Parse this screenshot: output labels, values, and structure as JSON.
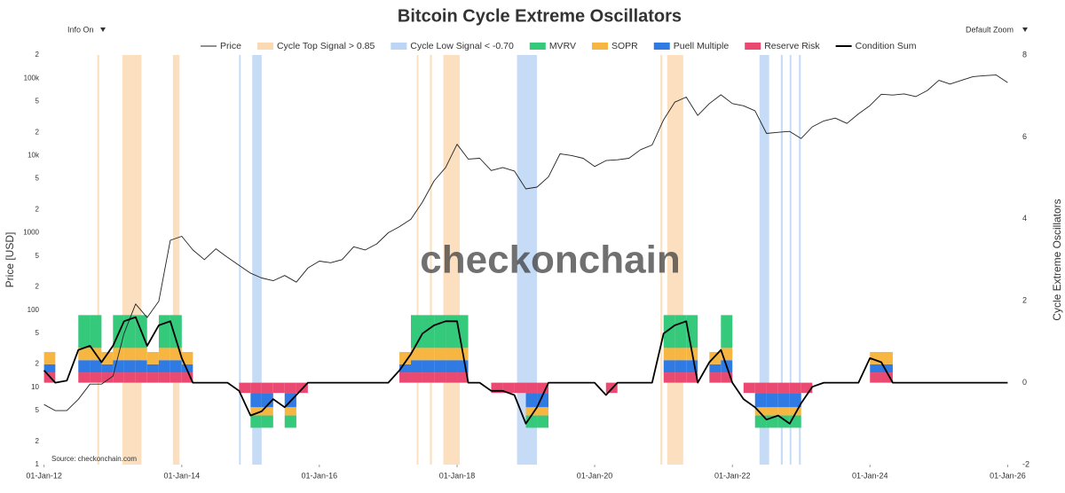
{
  "controls": [
    "Info On",
    "Default Zoom"
  ],
  "chart_data": {
    "type": "line",
    "title": "Bitcoin Cycle Extreme Oscillators",
    "watermark": "checkonchain",
    "source": "Source: checkonchain.com",
    "ylabel": "Price [USD]",
    "y2label": "Cycle Extreme Oscillators",
    "log_scale": true,
    "grid": false,
    "xlim": [
      "2011-12-15",
      "2026-02-15"
    ],
    "xticks": [
      {
        "value": "2012-01-01",
        "label": "01-Jan-12"
      },
      {
        "value": "2014-01-01",
        "label": "01-Jan-14"
      },
      {
        "value": "2016-01-01",
        "label": "01-Jan-16"
      },
      {
        "value": "2018-01-01",
        "label": "01-Jan-18"
      },
      {
        "value": "2020-01-01",
        "label": "01-Jan-20"
      },
      {
        "value": "2022-01-01",
        "label": "01-Jan-22"
      },
      {
        "value": "2024-01-01",
        "label": "01-Jan-24"
      },
      {
        "value": "2026-01-01",
        "label": "01-Jan-26"
      }
    ],
    "ylim": [
      1,
      200000
    ],
    "yticks": [
      1,
      2,
      5,
      10,
      {
        "value": 20,
        "label": "2"
      },
      {
        "value": 50,
        "label": "5"
      },
      100,
      {
        "value": 200,
        "label": "2"
      },
      {
        "value": 500,
        "label": "5"
      },
      1000,
      {
        "value": 2000,
        "label": "2"
      },
      {
        "value": 5000,
        "label": "5"
      },
      {
        "value": 10000,
        "label": "10k"
      },
      {
        "value": 20000,
        "label": "2"
      },
      {
        "value": 50000,
        "label": "5"
      },
      {
        "value": 100000,
        "label": "100k"
      },
      {
        "value": 200000,
        "label": "2"
      }
    ],
    "y2lim": [
      -2,
      8
    ],
    "y2ticks": [
      -2,
      0,
      2,
      4,
      6,
      8
    ],
    "top_signal": {
      "name": "Cycle Top Signal > 0.85",
      "color": "#fbd9b3",
      "periods": [
        [
          "2012-10-10",
          "2012-10-20"
        ],
        [
          "2013-02-20",
          "2013-06-01"
        ],
        [
          "2013-11-15",
          "2013-12-20"
        ],
        [
          "2017-06-01",
          "2017-06-10"
        ],
        [
          "2017-08-10",
          "2017-08-20"
        ],
        [
          "2017-10-20",
          "2018-01-15"
        ],
        [
          "2020-12-15",
          "2020-12-25"
        ],
        [
          "2021-01-20",
          "2021-04-15"
        ]
      ]
    },
    "low_signal": {
      "name": "Cycle Low Signal < -0.70",
      "color": "#bcd5f5",
      "periods": [
        [
          "2014-11-01",
          "2014-11-10"
        ],
        [
          "2015-01-10",
          "2015-03-01"
        ],
        [
          "2018-11-15",
          "2019-03-01"
        ],
        [
          "2022-05-25",
          "2022-07-15"
        ],
        [
          "2022-09-15",
          "2022-09-25"
        ],
        [
          "2022-11-01",
          "2022-11-10"
        ],
        [
          "2022-12-20",
          "2022-12-30"
        ]
      ]
    },
    "x": [
      "2012-01-01",
      "2012-03-01",
      "2012-05-01",
      "2012-07-01",
      "2012-09-01",
      "2012-11-01",
      "2013-01-01",
      "2013-03-01",
      "2013-05-01",
      "2013-07-01",
      "2013-09-01",
      "2013-11-01",
      "2014-01-01",
      "2014-03-01",
      "2014-05-01",
      "2014-07-01",
      "2014-09-01",
      "2014-11-01",
      "2015-01-01",
      "2015-03-01",
      "2015-05-01",
      "2015-07-01",
      "2015-09-01",
      "2015-11-01",
      "2016-01-01",
      "2016-03-01",
      "2016-05-01",
      "2016-07-01",
      "2016-09-01",
      "2016-11-01",
      "2017-01-01",
      "2017-03-01",
      "2017-05-01",
      "2017-07-01",
      "2017-09-01",
      "2017-11-01",
      "2018-01-01",
      "2018-03-01",
      "2018-05-01",
      "2018-07-01",
      "2018-09-01",
      "2018-11-01",
      "2019-01-01",
      "2019-03-01",
      "2019-05-01",
      "2019-07-01",
      "2019-09-01",
      "2019-11-01",
      "2020-01-01",
      "2020-03-01",
      "2020-05-01",
      "2020-07-01",
      "2020-09-01",
      "2020-11-01",
      "2021-01-01",
      "2021-03-01",
      "2021-05-01",
      "2021-07-01",
      "2021-09-01",
      "2021-11-01",
      "2022-01-01",
      "2022-03-01",
      "2022-05-01",
      "2022-07-01",
      "2022-09-01",
      "2022-11-01",
      "2023-01-01",
      "2023-03-01",
      "2023-05-01",
      "2023-07-01",
      "2023-09-01",
      "2023-11-01",
      "2024-01-01",
      "2024-03-01",
      "2024-05-01",
      "2024-07-01",
      "2024-09-01",
      "2024-11-01",
      "2025-01-01",
      "2025-03-01",
      "2025-05-01",
      "2025-07-01",
      "2025-09-01",
      "2025-11-01",
      "2026-01-01"
    ],
    "series": [
      {
        "name": "Price",
        "color": "#222222",
        "axis": "y",
        "values": [
          6,
          5,
          5,
          7,
          11,
          11,
          14,
          50,
          120,
          80,
          130,
          800,
          900,
          600,
          450,
          620,
          480,
          380,
          300,
          260,
          240,
          280,
          230,
          350,
          430,
          410,
          450,
          660,
          600,
          720,
          1000,
          1200,
          1500,
          2500,
          4700,
          7000,
          14000,
          9000,
          9200,
          6400,
          7000,
          6300,
          3700,
          3900,
          5300,
          10500,
          10000,
          9200,
          7200,
          8600,
          8800,
          9200,
          11900,
          13700,
          29000,
          49000,
          57000,
          33000,
          47000,
          61000,
          47000,
          44000,
          38000,
          19300,
          20000,
          20500,
          16600,
          23500,
          28000,
          30500,
          26000,
          34600,
          44200,
          62000,
          60600,
          62700,
          58000,
          69500,
          94000,
          84000,
          94000,
          105000,
          108000,
          110000,
          88000
        ]
      },
      {
        "name": "MVRV",
        "color": "#35c97c",
        "axis": "y2",
        "stacked": true,
        "values": [
          0,
          0,
          0,
          0.8,
          0.8,
          0,
          0.8,
          0.8,
          0.8,
          0,
          0.8,
          0.8,
          0,
          0,
          0,
          0,
          0,
          0,
          -0.3,
          -0.3,
          0,
          -0.3,
          0,
          0,
          0,
          0,
          0,
          0,
          0,
          0,
          0,
          0,
          0.8,
          0.8,
          0.8,
          0.8,
          0.8,
          0,
          0,
          0,
          0,
          0,
          -0.3,
          -0.3,
          0,
          0,
          0,
          0,
          0,
          0,
          0,
          0,
          0,
          0,
          0.8,
          0.8,
          0.8,
          0,
          0,
          0.8,
          0,
          0,
          -0.3,
          -0.3,
          -0.3,
          -0.3,
          0,
          0,
          0,
          0,
          0,
          0,
          0,
          0,
          0,
          0,
          0,
          0,
          0,
          0,
          0,
          0,
          0,
          0,
          0
        ]
      },
      {
        "name": "SOPR",
        "color": "#f7b541",
        "axis": "y2",
        "stacked": true,
        "values": [
          0.3,
          0,
          0,
          0.3,
          0.3,
          0.3,
          0.3,
          0.3,
          0.3,
          0.3,
          0.3,
          0.3,
          0.3,
          0,
          0,
          0,
          0,
          0,
          -0.2,
          -0.2,
          0,
          -0.2,
          0,
          0,
          0,
          0,
          0,
          0,
          0,
          0,
          0,
          0.3,
          0.3,
          0.3,
          0.3,
          0.3,
          0.3,
          0,
          0,
          0,
          0,
          0,
          -0.2,
          -0.2,
          0,
          0,
          0,
          0,
          0,
          0,
          0,
          0,
          0,
          0,
          0.3,
          0.3,
          0.3,
          0,
          0.3,
          0.3,
          0,
          0,
          -0.2,
          -0.2,
          -0.2,
          -0.2,
          0,
          0,
          0,
          0,
          0,
          0,
          0.3,
          0.3,
          0,
          0,
          0,
          0,
          0,
          0,
          0,
          0,
          0,
          0,
          0
        ]
      },
      {
        "name": "Puell Multiple",
        "color": "#2f7be3",
        "axis": "y2",
        "stacked": true,
        "values": [
          0.2,
          0,
          0,
          0.3,
          0.3,
          0.2,
          0.3,
          0.3,
          0.3,
          0.2,
          0.3,
          0.3,
          0.2,
          0,
          0,
          0,
          0,
          0,
          -0.35,
          -0.35,
          0,
          -0.35,
          0,
          0,
          0,
          0,
          0,
          0,
          0,
          0,
          0,
          0.2,
          0.3,
          0.3,
          0.3,
          0.3,
          0.3,
          0,
          0,
          0,
          0,
          0,
          -0.35,
          -0.35,
          0,
          0,
          0,
          0,
          0,
          0,
          0,
          0,
          0,
          0,
          0.3,
          0.3,
          0.3,
          0,
          0.2,
          0.3,
          0,
          0,
          -0.35,
          -0.35,
          -0.35,
          -0.35,
          0,
          0,
          0,
          0,
          0,
          0,
          0.2,
          0.2,
          0,
          0,
          0,
          0,
          0,
          0,
          0,
          0,
          0,
          0,
          0
        ]
      },
      {
        "name": "Reserve Risk",
        "color": "#ea4a72",
        "axis": "y2",
        "stacked": true,
        "values": [
          0.25,
          0,
          0,
          0.25,
          0.25,
          0.25,
          0.25,
          0.25,
          0.25,
          0.25,
          0.25,
          0.25,
          0.25,
          0,
          0,
          0,
          0,
          -0.25,
          -0.25,
          -0.25,
          -0.25,
          -0.25,
          -0.25,
          0,
          0,
          0,
          0,
          0,
          0,
          0,
          0,
          0.25,
          0.25,
          0.25,
          0.25,
          0.25,
          0.25,
          0,
          0,
          -0.25,
          -0.25,
          -0.25,
          -0.25,
          -0.25,
          0,
          0,
          0,
          0,
          0,
          -0.25,
          0,
          0,
          0,
          0,
          0.25,
          0.25,
          0.25,
          0,
          0.25,
          0.25,
          0,
          -0.25,
          -0.25,
          -0.25,
          -0.25,
          -0.25,
          -0.25,
          0,
          0,
          0,
          0,
          0,
          0.25,
          0.25,
          0,
          0,
          0,
          0,
          0,
          0,
          0,
          0,
          0,
          0,
          0
        ]
      },
      {
        "name": "Condition Sum",
        "color": "#000000",
        "axis": "y2",
        "values": [
          0.3,
          0,
          0.05,
          0.8,
          0.9,
          0.5,
          0.9,
          1.5,
          1.6,
          0.9,
          1.4,
          1.5,
          0.6,
          0,
          0,
          0,
          0,
          -0.2,
          -0.8,
          -0.7,
          -0.4,
          -0.6,
          -0.3,
          0,
          0,
          0,
          0,
          0,
          0,
          0,
          0,
          0.3,
          0.7,
          1.2,
          1.4,
          1.5,
          1.5,
          0,
          0,
          -0.2,
          -0.2,
          -0.3,
          -1,
          -0.6,
          0,
          0,
          0,
          0,
          0,
          -0.3,
          0,
          0,
          0,
          0,
          1.2,
          1.4,
          1.5,
          0,
          0.5,
          0.8,
          0,
          -0.4,
          -0.6,
          -0.9,
          -0.8,
          -1,
          -0.5,
          -0.1,
          0,
          0,
          0,
          0,
          0.6,
          0.5,
          0,
          0,
          0,
          0,
          0,
          0,
          0,
          0,
          0,
          0,
          0
        ]
      }
    ]
  }
}
